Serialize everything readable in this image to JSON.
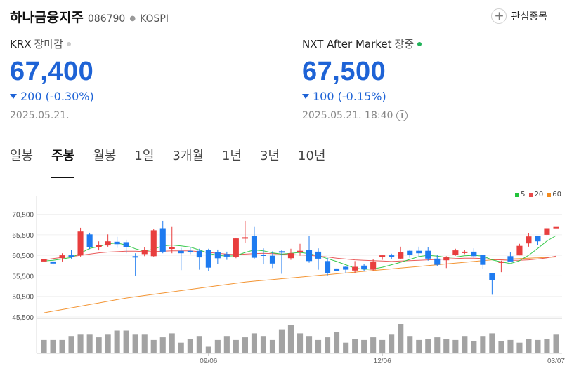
{
  "header": {
    "name": "하나금융지주",
    "code": "086790",
    "market": "KOSPI",
    "watch_label": "관심종목"
  },
  "krx": {
    "exchange": "KRX",
    "session": "장마감",
    "price": "67,400",
    "change": "200 (-0.30%)",
    "date": "2025.05.21."
  },
  "nxt": {
    "exchange": "NXT After Market",
    "session": "장중",
    "price": "67,500",
    "change": "100 (-0.15%)",
    "date": "2025.05.21. 18:40"
  },
  "tabs": [
    "일봉",
    "주봉",
    "월봉",
    "1일",
    "3개월",
    "1년",
    "3년",
    "10년"
  ],
  "active_tab": 1,
  "colors": {
    "up": "#e83e3e",
    "down": "#1e7bf0",
    "ma5": "#22c33a",
    "ma20": "#e84a4a",
    "ma60": "#f28a1e",
    "volume": "#a3a3a3",
    "dot_closed": "#cccccc",
    "dot_live": "#22b35a"
  },
  "chart_data": {
    "type": "candlestick",
    "y_ticks": [
      "70,500",
      "65,500",
      "60,500",
      "55,500",
      "50,500",
      "45,500"
    ],
    "ylim": [
      45500,
      73500
    ],
    "x_labels": [
      {
        "index": 18,
        "label": "09/06"
      },
      {
        "index": 37,
        "label": "12/06"
      },
      {
        "index": 56,
        "label": "03/07"
      }
    ],
    "legend": [
      {
        "name": "5",
        "color": "#22c33a"
      },
      {
        "name": "20",
        "color": "#e84a4a"
      },
      {
        "name": "60",
        "color": "#f28a1e"
      }
    ],
    "candles": [
      [
        59000,
        59500,
        60700,
        58200
      ],
      [
        59000,
        58500,
        59900,
        57900
      ],
      [
        59800,
        60500,
        61000,
        59000
      ],
      [
        60500,
        60000,
        61800,
        59700
      ],
      [
        60500,
        66300,
        67200,
        60200
      ],
      [
        65600,
        62500,
        66000,
        62000
      ],
      [
        62400,
        63000,
        63900,
        61700
      ],
      [
        62900,
        63900,
        65600,
        62600
      ],
      [
        63800,
        63200,
        65000,
        62300
      ],
      [
        63700,
        62400,
        64300,
        61000
      ],
      [
        60300,
        60000,
        61000,
        55400
      ],
      [
        60800,
        61800,
        62400,
        60300
      ],
      [
        60300,
        66600,
        67000,
        60200
      ],
      [
        67100,
        61400,
        68900,
        61000
      ],
      [
        62300,
        62400,
        67400,
        61000
      ],
      [
        61600,
        61000,
        62300,
        56900
      ],
      [
        61600,
        61400,
        62500,
        60800
      ],
      [
        61600,
        60000,
        62100,
        57000
      ],
      [
        61800,
        57500,
        62100,
        56600
      ],
      [
        61300,
        59800,
        61900,
        58400
      ],
      [
        60800,
        60200,
        61400,
        59400
      ],
      [
        60100,
        64600,
        64800,
        59800
      ],
      [
        64700,
        64900,
        68900,
        63600
      ],
      [
        65300,
        59900,
        67400,
        59700
      ],
      [
        60700,
        60400,
        62200,
        58300
      ],
      [
        60400,
        58500,
        61500,
        57400
      ],
      [
        61500,
        61200,
        61800,
        56000
      ],
      [
        59800,
        61000,
        62100,
        59400
      ],
      [
        61500,
        61600,
        63300,
        60400
      ],
      [
        61800,
        59100,
        65200,
        58700
      ],
      [
        61400,
        59700,
        62200,
        57000
      ],
      [
        59100,
        56200,
        59900,
        55600
      ],
      [
        57300,
        56700,
        57300,
        56700
      ],
      [
        57700,
        57000,
        57900,
        56100
      ],
      [
        56800,
        57700,
        59100,
        56200
      ],
      [
        58000,
        57100,
        58400,
        56700
      ],
      [
        57000,
        59000,
        59500,
        56800
      ],
      [
        60000,
        60500,
        60600,
        59400
      ],
      [
        60500,
        60200,
        60900,
        59600
      ],
      [
        59700,
        61200,
        62600,
        59500
      ],
      [
        61600,
        60600,
        61900,
        59900
      ],
      [
        61600,
        61000,
        62600,
        60300
      ],
      [
        61600,
        59700,
        62400,
        59200
      ],
      [
        59700,
        58200,
        60600,
        57800
      ],
      [
        59300,
        60000,
        60300,
        57400
      ],
      [
        60700,
        61700,
        62100,
        60400
      ],
      [
        61400,
        61400,
        61800,
        60800
      ],
      [
        61400,
        60300,
        62200,
        59900
      ],
      [
        60600,
        58200,
        60700,
        57200
      ],
      [
        56200,
        54400,
        55300,
        50900
      ],
      [
        58800,
        59000,
        59200,
        56400
      ],
      [
        60300,
        59000,
        61200,
        59100
      ],
      [
        60500,
        62800,
        63300,
        60500
      ],
      [
        63400,
        65100,
        65900,
        62600
      ],
      [
        65200,
        63900,
        65200,
        63000
      ],
      [
        65500,
        67100,
        67600,
        64900
      ],
      [
        67200,
        67400,
        68000,
        66500
      ]
    ],
    "ma5": [
      59100,
      59300,
      59600,
      60000,
      61000,
      62200,
      62600,
      63300,
      63500,
      63000,
      62100,
      61500,
      62000,
      62800,
      63000,
      62800,
      62500,
      61800,
      61000,
      60500,
      60300,
      60400,
      61200,
      61800,
      61600,
      61100,
      60800,
      61000,
      61200,
      60900,
      60400,
      59700,
      59000,
      58200,
      57400,
      57100,
      57200,
      57600,
      58200,
      58800,
      59500,
      60200,
      60500,
      60300,
      60000,
      60100,
      60400,
      60500,
      60300,
      59400,
      58900,
      58500,
      59200,
      60500,
      62200,
      64000,
      65300
    ],
    "ma20": [
      59400,
      59700,
      60000,
      60200,
      60500,
      60800,
      61100,
      61300,
      61400,
      61500,
      61500,
      61400,
      61400,
      61500,
      61600,
      61600,
      61600,
      61400,
      61200,
      61000,
      60800,
      60700,
      60800,
      60900,
      61000,
      60900,
      60800,
      60700,
      60600,
      60500,
      60300,
      60100,
      59800,
      59600,
      59400,
      59300,
      59200,
      59100,
      59000,
      59100,
      59200,
      59300,
      59400,
      59500,
      59600,
      59700,
      59800,
      59800,
      59700,
      59500,
      59400,
      59300,
      59300,
      59400,
      59600,
      59900,
      60300
    ],
    "ma60": [
      46500,
      46900,
      47300,
      47700,
      48100,
      48500,
      48900,
      49300,
      49700,
      50100,
      50400,
      50700,
      51000,
      51300,
      51600,
      51900,
      52200,
      52500,
      52800,
      53100,
      53400,
      53700,
      54000,
      54200,
      54400,
      54600,
      54800,
      55000,
      55200,
      55400,
      55600,
      55800,
      56000,
      56200,
      56400,
      56600,
      56800,
      57000,
      57200,
      57400,
      57600,
      57800,
      58000,
      58200,
      58400,
      58600,
      58800,
      59000,
      59200,
      59400,
      59500,
      59600,
      59700,
      59800,
      59900,
      60000,
      60100
    ],
    "volume": [
      10,
      10,
      10,
      13,
      14,
      14,
      12,
      14,
      17,
      17,
      14,
      14,
      10,
      12,
      15,
      8,
      11,
      13,
      5,
      10,
      13,
      10,
      12,
      15,
      13,
      10,
      18,
      21,
      15,
      13,
      10,
      12,
      16,
      8,
      11,
      10,
      12,
      10,
      14,
      22,
      13,
      10,
      11,
      12,
      11,
      10,
      13,
      9,
      13,
      15,
      9,
      10,
      8,
      11,
      10,
      11,
      14
    ],
    "volume_x_labels": [
      "09/06",
      "12/06",
      "03/07"
    ]
  }
}
